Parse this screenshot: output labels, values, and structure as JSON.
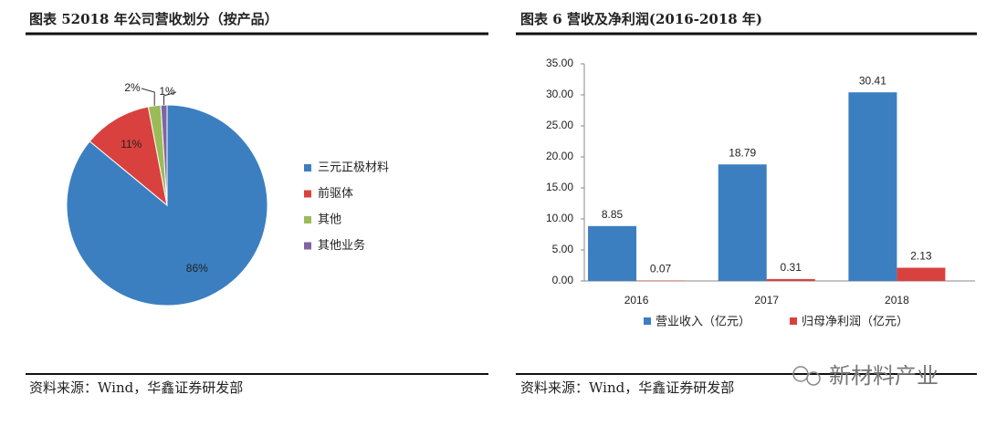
{
  "chart_data": [
    {
      "type": "pie",
      "title": "图表 52018 年公司营收划分（按产品）",
      "categories": [
        "三元正极材料",
        "前驱体",
        "其他",
        "其他业务"
      ],
      "values": [
        86,
        11,
        2,
        1
      ],
      "value_labels": [
        "86%",
        "11%",
        "2%",
        "1%"
      ],
      "colors": [
        "#3b7fc1",
        "#d9413f",
        "#9bbb59",
        "#8064a2"
      ],
      "legend": "right",
      "source": "资料来源：Wind，华鑫证券研发部"
    },
    {
      "type": "bar",
      "title": "图表 6 营收及净利润(2016-2018 年)",
      "categories": [
        "2016",
        "2017",
        "2018"
      ],
      "series": [
        {
          "name": "营业收入（亿元）",
          "color": "#3b7fc1",
          "values": [
            8.85,
            18.79,
            30.41
          ]
        },
        {
          "name": "归母净利润（亿元）",
          "color": "#d9413f",
          "values": [
            0.07,
            0.31,
            2.13
          ]
        }
      ],
      "ylim": [
        0,
        35
      ],
      "yticks": [
        {
          "value": 0,
          "label": "0.00"
        },
        {
          "value": 5,
          "label": "5.00"
        },
        {
          "value": 10,
          "label": "10.00"
        },
        {
          "value": 15,
          "label": "15.00"
        },
        {
          "value": 20,
          "label": "20.00"
        },
        {
          "value": 25,
          "label": "25.00"
        },
        {
          "value": 30,
          "label": "30.00"
        },
        {
          "value": 35,
          "label": "35.00"
        }
      ],
      "legend": "bottom",
      "source": "资料来源：Wind，华鑫证券研发部"
    }
  ],
  "watermark": "新材料产业"
}
